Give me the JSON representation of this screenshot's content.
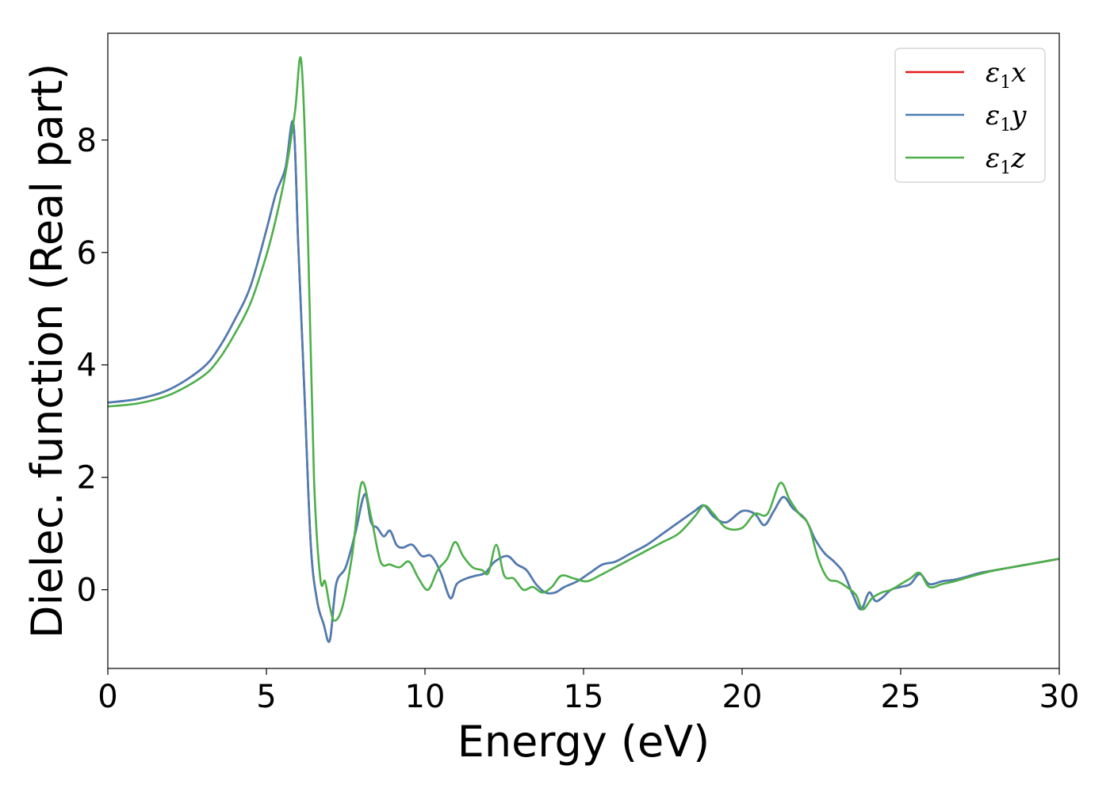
{
  "chart_data": {
    "type": "line",
    "title": "",
    "xlabel": "Energy (eV)",
    "ylabel": "Dielec. function (Real part)",
    "xlim": [
      0,
      30
    ],
    "ylim": [
      -1.4,
      9.9
    ],
    "xticks": [
      0,
      5,
      10,
      15,
      20,
      25,
      30
    ],
    "yticks": [
      0,
      2,
      4,
      6,
      8
    ],
    "xtick_labels": [
      "0",
      "5",
      "10",
      "15",
      "20",
      "25",
      "30"
    ],
    "ytick_labels": [
      "0",
      "2",
      "4",
      "6",
      "8"
    ],
    "grid": false,
    "legend_position": "top-right",
    "series": [
      {
        "name": "ε₁x",
        "label_base": "ε",
        "label_sub": "1",
        "label_var": "x",
        "color": "#e41a1c",
        "x": [
          0,
          1,
          2,
          3,
          3.5,
          4,
          4.5,
          5,
          5.3,
          5.6,
          5.85,
          6.0,
          6.2,
          6.4,
          6.6,
          6.8,
          7.0,
          7.2,
          7.5,
          7.8,
          8.1,
          8.3,
          8.5,
          8.7,
          8.9,
          9.1,
          9.3,
          9.6,
          9.9,
          10.2,
          10.5,
          10.8,
          11.0,
          11.3,
          11.6,
          11.9,
          12.2,
          12.6,
          12.9,
          13.2,
          13.5,
          13.8,
          14.1,
          14.4,
          14.8,
          15.2,
          15.6,
          16.0,
          16.5,
          17.0,
          17.5,
          18.0,
          18.5,
          18.8,
          19.1,
          19.5,
          20.0,
          20.4,
          20.7,
          21.0,
          21.3,
          21.6,
          22.0,
          22.3,
          22.6,
          22.9,
          23.2,
          23.5,
          23.75,
          24.0,
          24.2,
          24.4,
          24.7,
          25.0,
          25.3,
          25.6,
          25.9,
          26.3,
          26.7,
          27.0,
          27.5,
          28.0,
          28.5,
          29.0,
          29.5,
          30.0
        ],
        "y": [
          3.33,
          3.4,
          3.58,
          3.95,
          4.3,
          4.8,
          5.4,
          6.4,
          7.05,
          7.5,
          8.3,
          6.2,
          3.5,
          0.8,
          -0.2,
          -0.6,
          -0.9,
          0.1,
          0.4,
          1.0,
          1.7,
          1.2,
          1.1,
          0.95,
          1.05,
          0.8,
          0.75,
          0.8,
          0.6,
          0.6,
          0.3,
          -0.15,
          0.1,
          0.2,
          0.25,
          0.3,
          0.5,
          0.6,
          0.45,
          0.35,
          0.1,
          -0.05,
          -0.05,
          0.05,
          0.15,
          0.3,
          0.45,
          0.5,
          0.65,
          0.8,
          1.0,
          1.2,
          1.4,
          1.5,
          1.3,
          1.2,
          1.4,
          1.35,
          1.15,
          1.4,
          1.65,
          1.45,
          1.25,
          0.9,
          0.65,
          0.5,
          0.3,
          -0.1,
          -0.35,
          -0.05,
          -0.2,
          -0.15,
          0.0,
          0.05,
          0.1,
          0.28,
          0.1,
          0.15,
          0.18,
          0.22,
          0.3,
          0.35,
          0.4,
          0.45,
          0.5,
          0.55
        ]
      },
      {
        "name": "ε₁y",
        "label_base": "ε",
        "label_sub": "1",
        "label_var": "y",
        "color": "#4a7eb5",
        "x": [
          0,
          1,
          2,
          3,
          3.5,
          4,
          4.5,
          5,
          5.3,
          5.6,
          5.85,
          6.0,
          6.2,
          6.4,
          6.6,
          6.8,
          7.0,
          7.2,
          7.5,
          7.8,
          8.1,
          8.3,
          8.5,
          8.7,
          8.9,
          9.1,
          9.3,
          9.6,
          9.9,
          10.2,
          10.5,
          10.8,
          11.0,
          11.3,
          11.6,
          11.9,
          12.2,
          12.6,
          12.9,
          13.2,
          13.5,
          13.8,
          14.1,
          14.4,
          14.8,
          15.2,
          15.6,
          16.0,
          16.5,
          17.0,
          17.5,
          18.0,
          18.5,
          18.8,
          19.1,
          19.5,
          20.0,
          20.4,
          20.7,
          21.0,
          21.3,
          21.6,
          22.0,
          22.3,
          22.6,
          22.9,
          23.2,
          23.5,
          23.75,
          24.0,
          24.2,
          24.4,
          24.7,
          25.0,
          25.3,
          25.6,
          25.9,
          26.3,
          26.7,
          27.0,
          27.5,
          28.0,
          28.5,
          29.0,
          29.5,
          30.0
        ],
        "y": [
          3.33,
          3.4,
          3.58,
          3.95,
          4.3,
          4.8,
          5.4,
          6.4,
          7.05,
          7.5,
          8.3,
          6.2,
          3.5,
          0.8,
          -0.2,
          -0.6,
          -0.9,
          0.1,
          0.4,
          1.0,
          1.7,
          1.2,
          1.1,
          0.95,
          1.05,
          0.8,
          0.75,
          0.8,
          0.6,
          0.6,
          0.3,
          -0.15,
          0.1,
          0.2,
          0.25,
          0.3,
          0.5,
          0.6,
          0.45,
          0.35,
          0.1,
          -0.05,
          -0.05,
          0.05,
          0.15,
          0.3,
          0.45,
          0.5,
          0.65,
          0.8,
          1.0,
          1.2,
          1.4,
          1.5,
          1.3,
          1.2,
          1.4,
          1.35,
          1.15,
          1.4,
          1.65,
          1.45,
          1.25,
          0.9,
          0.65,
          0.5,
          0.3,
          -0.1,
          -0.35,
          -0.05,
          -0.2,
          -0.15,
          0.0,
          0.05,
          0.1,
          0.28,
          0.1,
          0.15,
          0.18,
          0.22,
          0.3,
          0.35,
          0.4,
          0.45,
          0.5,
          0.55
        ]
      },
      {
        "name": "ε₁z",
        "label_base": "ε",
        "label_sub": "1",
        "label_var": "z",
        "color": "#4daf4a",
        "x": [
          0,
          1,
          2,
          3,
          3.5,
          4,
          4.5,
          5,
          5.3,
          5.6,
          5.9,
          6.1,
          6.3,
          6.5,
          6.7,
          6.85,
          7.0,
          7.15,
          7.4,
          7.7,
          8.0,
          8.3,
          8.6,
          8.9,
          9.2,
          9.5,
          9.8,
          10.1,
          10.4,
          10.7,
          10.95,
          11.2,
          11.5,
          11.8,
          12.0,
          12.25,
          12.5,
          12.8,
          13.1,
          13.4,
          13.7,
          14.0,
          14.3,
          14.7,
          15.1,
          15.5,
          16.0,
          16.5,
          17.0,
          17.5,
          18.0,
          18.5,
          18.8,
          19.1,
          19.5,
          20.0,
          20.4,
          20.8,
          21.2,
          21.5,
          21.8,
          22.1,
          22.4,
          22.7,
          23.0,
          23.3,
          23.6,
          23.8,
          24.1,
          24.4,
          24.7,
          25.0,
          25.3,
          25.6,
          25.9,
          26.3,
          26.7,
          27.0,
          27.5,
          28.0,
          28.5,
          29.0,
          29.5,
          30.0
        ],
        "y": [
          3.26,
          3.32,
          3.48,
          3.8,
          4.1,
          4.55,
          5.1,
          5.95,
          6.6,
          7.4,
          8.5,
          9.4,
          6.5,
          2.0,
          0.2,
          0.15,
          -0.3,
          -0.55,
          -0.3,
          0.6,
          1.9,
          1.3,
          0.5,
          0.45,
          0.4,
          0.5,
          0.2,
          0.0,
          0.35,
          0.55,
          0.85,
          0.6,
          0.4,
          0.35,
          0.3,
          0.8,
          0.25,
          0.2,
          0.0,
          0.05,
          -0.05,
          0.05,
          0.25,
          0.2,
          0.15,
          0.25,
          0.4,
          0.55,
          0.7,
          0.85,
          1.0,
          1.3,
          1.5,
          1.35,
          1.1,
          1.1,
          1.35,
          1.35,
          1.9,
          1.6,
          1.35,
          1.15,
          0.55,
          0.2,
          0.15,
          0.05,
          -0.1,
          -0.35,
          -0.15,
          -0.05,
          0.0,
          0.1,
          0.2,
          0.3,
          0.05,
          0.1,
          0.15,
          0.2,
          0.28,
          0.35,
          0.4,
          0.45,
          0.5,
          0.55
        ]
      }
    ]
  }
}
